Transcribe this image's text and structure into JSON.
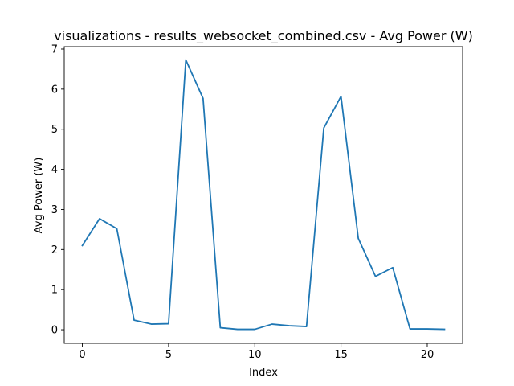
{
  "chart_data": {
    "type": "line",
    "title": "visualizations - results_websocket_combined.csv - Avg Power (W)",
    "xlabel": "Index",
    "ylabel": "Avg Power (W)",
    "xlim": [
      -1.05,
      22.05
    ],
    "ylim": [
      -0.34,
      7.06
    ],
    "xticks": [
      0,
      5,
      10,
      15,
      20
    ],
    "yticks": [
      0,
      1,
      2,
      3,
      4,
      5,
      6,
      7
    ],
    "grid": false,
    "legend": "none",
    "series": [
      {
        "color": "#1f77b4",
        "x": [
          0,
          1,
          2,
          3,
          4,
          5,
          6,
          7,
          8,
          9,
          10,
          11,
          12,
          13,
          14,
          15,
          16,
          17,
          18,
          19,
          20,
          21
        ],
        "y": [
          2.1,
          2.77,
          2.52,
          0.24,
          0.14,
          0.15,
          6.73,
          5.77,
          0.05,
          0.01,
          0.01,
          0.14,
          0.1,
          0.08,
          5.03,
          5.82,
          2.28,
          1.33,
          1.55,
          0.02,
          0.02,
          0.01
        ]
      }
    ]
  }
}
